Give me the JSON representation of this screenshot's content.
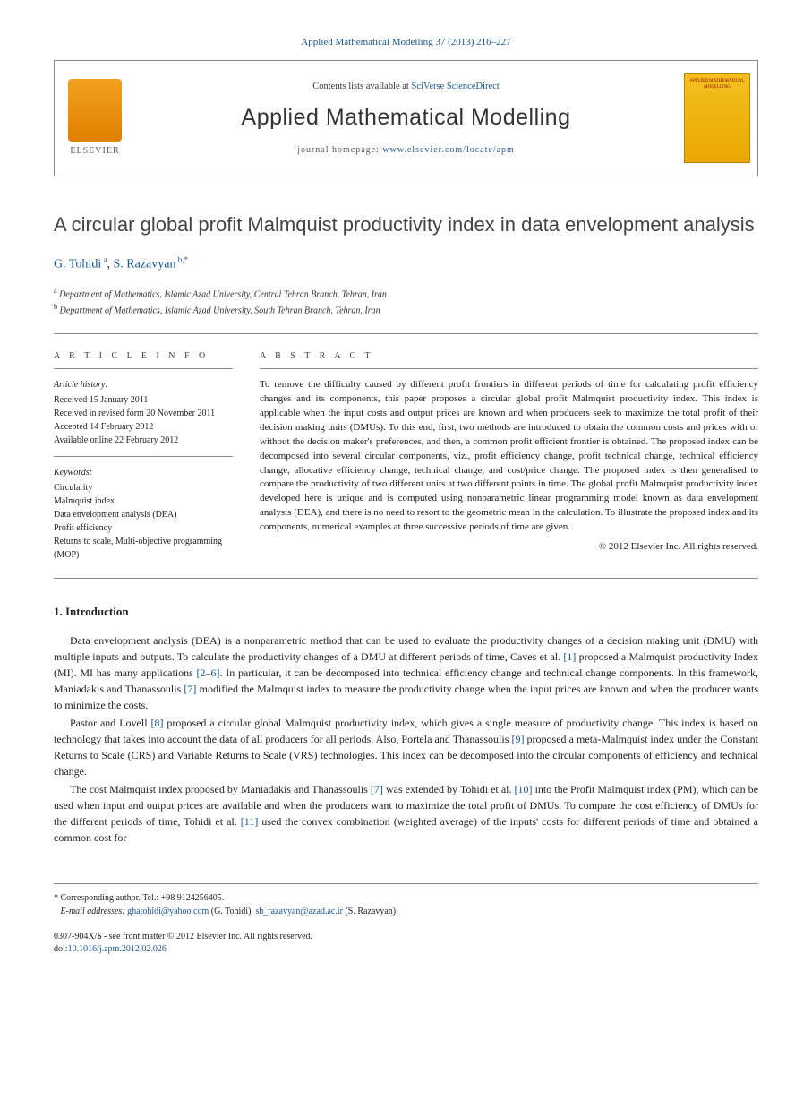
{
  "header": {
    "citation": "Applied Mathematical Modelling 37 (2013) 216–227",
    "contents_prefix": "Contents lists available at ",
    "contents_link": "SciVerse ScienceDirect",
    "journal_name": "Applied Mathematical Modelling",
    "homepage_prefix": "journal homepage: ",
    "homepage_url": "www.elsevier.com/locate/apm",
    "publisher_label": "ELSEVIER",
    "cover_text": "APPLIED MATHEMATICAL MODELLING"
  },
  "article": {
    "title": "A circular global profit Malmquist productivity index in data envelopment analysis",
    "authors": [
      {
        "name": "G. Tohidi",
        "sup": "a"
      },
      {
        "name": "S. Razavyan",
        "sup": "b,*"
      }
    ],
    "affiliations": [
      {
        "sup": "a",
        "text": "Department of Mathematics, Islamic Azad University, Central Tehran Branch, Tehran, Iran"
      },
      {
        "sup": "b",
        "text": "Department of Mathematics, Islamic Azad University, South Tehran Branch, Tehran, Iran"
      }
    ]
  },
  "info": {
    "heading": "A R T I C L E   I N F O",
    "history_label": "Article history:",
    "history": [
      "Received 15 January 2011",
      "Received in revised form 20 November 2011",
      "Accepted 14 February 2012",
      "Available online 22 February 2012"
    ],
    "keywords_label": "Keywords:",
    "keywords": [
      "Circularity",
      "Malmquist index",
      "Data envelopment analysis (DEA)",
      "Profit efficiency",
      "Returns to scale, Multi-objective programming (MOP)"
    ]
  },
  "abstract": {
    "heading": "A B S T R A C T",
    "text": "To remove the difficulty caused by different profit frontiers in different periods of time for calculating profit efficiency changes and its components, this paper proposes a circular global profit Malmquist productivity index. This index is applicable when the input costs and output prices are known and when producers seek to maximize the total profit of their decision making units (DMUs). To this end, first, two methods are introduced to obtain the common costs and prices with or without the decision maker's preferences, and then, a common profit efficient frontier is obtained. The proposed index can be decomposed into several circular components, viz., profit efficiency change, profit technical change, technical efficiency change, allocative efficiency change, technical change, and cost/price change. The proposed index is then generalised to compare the productivity of two different units at two different points in time. The global profit Malmquist productivity index developed here is unique and is computed using nonparametric linear programming model known as data envelopment analysis (DEA), and there is no need to resort to the geometric mean in the calculation. To illustrate the proposed index and its components, numerical examples at three successive periods of time are given.",
    "copyright": "© 2012 Elsevier Inc. All rights reserved."
  },
  "sections": {
    "intro_heading": "1. Introduction",
    "paragraphs": [
      {
        "pre": "Data envelopment analysis (DEA) is a nonparametric method that can be used to evaluate the productivity changes of a decision making unit (DMU) with multiple inputs and outputs. To calculate the productivity changes of a DMU at different periods of time, Caves et al. ",
        "ref1": "[1]",
        "mid1": " proposed a Malmquist productivity Index (MI). MI has many applications ",
        "ref2": "[2–6]",
        "mid2": ". In particular, it can be decomposed into technical efficiency change and technical change components. In this framework, Maniadakis and Thanassoulis ",
        "ref3": "[7]",
        "post": " modified the Malmquist index to measure the productivity change when the input prices are known and when the producer wants to minimize the costs."
      },
      {
        "pre": "Pastor and Lovell ",
        "ref1": "[8]",
        "mid1": " proposed a circular global Malmquist productivity index, which gives a single measure of productivity change. This index is based on technology that takes into account the data of all producers for all periods. Also, Portela and Thanassoulis ",
        "ref2": "[9]",
        "mid2": " proposed a meta-Malmquist index under the Constant Returns to Scale (CRS) and Variable Returns to Scale (VRS) technologies. This index can be decomposed into the circular components of efficiency and technical change.",
        "ref3": "",
        "post": ""
      },
      {
        "pre": "The cost Malmquist index proposed by Maniadakis and Thanassoulis ",
        "ref1": "[7]",
        "mid1": " was extended by Tohidi et al. ",
        "ref2": "[10]",
        "mid2": " into the Profit Malmquist index (PM), which can be used when input and output prices are available and when the producers want to maximize the total profit of DMUs. To compare the cost efficiency of DMUs for the different periods of time, Tohidi et al. ",
        "ref3": "[11]",
        "post": " used the convex combination (weighted average) of the inputs' costs for different periods of time and obtained a common cost for"
      }
    ]
  },
  "footnotes": {
    "corresponding": "* Corresponding author. Tel.: +98 9124256405.",
    "emails_label": "E-mail addresses:",
    "emails": [
      {
        "addr": "ghatohidi@yahoo.com",
        "who": " (G. Tohidi), "
      },
      {
        "addr": "sh_razavyan@azad.ac.ir",
        "who": " (S. Razavyan)."
      }
    ]
  },
  "doi": {
    "line1": "0307-904X/$ - see front matter © 2012 Elsevier Inc. All rights reserved.",
    "doi_prefix": "doi:",
    "doi": "10.1016/j.apm.2012.02.026"
  },
  "colors": {
    "link": "#1a5490",
    "text": "#222222",
    "border": "#888888"
  }
}
